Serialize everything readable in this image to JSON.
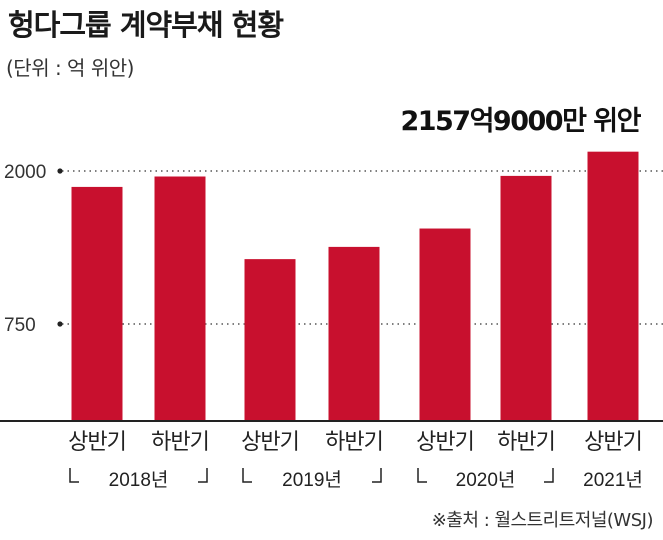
{
  "title": "헝다그룹 계약부채 현황",
  "unit": "(단위 : 억 위안)",
  "source": "※출처 : 월스트리트저널(WSJ)",
  "colors": {
    "bar": "#c8102e",
    "grid": "#555555",
    "axis": "#222222"
  },
  "chart_data": {
    "type": "bar",
    "categories": [
      "상반기",
      "하반기",
      "상반기",
      "하반기",
      "상반기",
      "하반기",
      "상반기"
    ],
    "groups": [
      {
        "label": "2018년",
        "bracket": true,
        "span": [
          0,
          1
        ]
      },
      {
        "label": "2019년",
        "bracket": true,
        "span": [
          2,
          3
        ]
      },
      {
        "label": "2020년",
        "bracket": true,
        "span": [
          4,
          5
        ]
      },
      {
        "label": "2021년",
        "bracket": false,
        "span": [
          6,
          6
        ]
      }
    ],
    "values": [
      1870,
      1955,
      1280,
      1380,
      1530,
      1960,
      2157.9
    ],
    "yticks": [
      750,
      2000
    ],
    "ylim": [
      0,
      2200
    ],
    "grid": "dotted at ticks",
    "annotation": {
      "text": "2157억9000만 위안",
      "bar_index": 6
    }
  }
}
